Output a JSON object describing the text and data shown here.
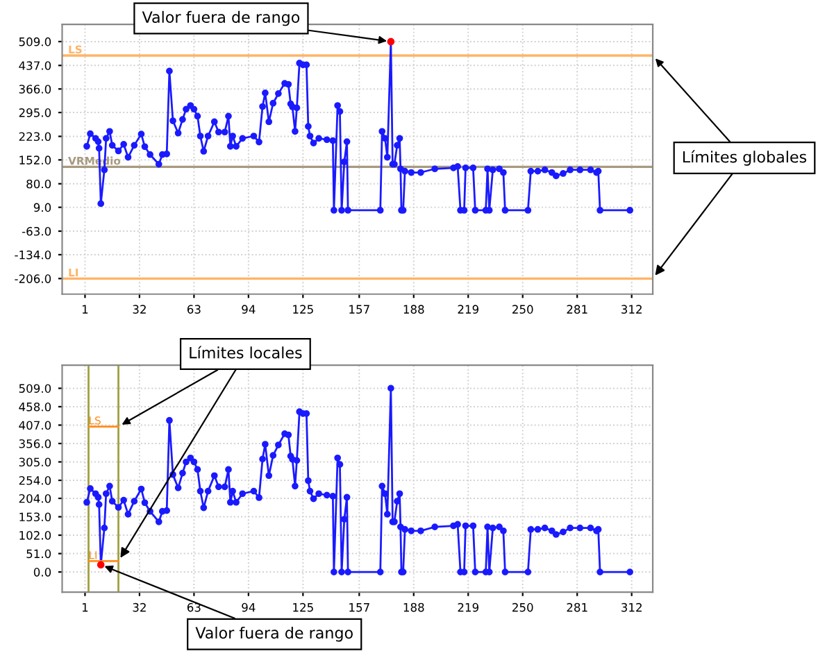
{
  "chart_data": [
    {
      "type": "line",
      "xlim": [
        -12,
        324
      ],
      "ylim": [
        -253,
        561
      ],
      "xticks": [
        1,
        32,
        63,
        94,
        125,
        157,
        188,
        219,
        250,
        281,
        312
      ],
      "yticks": [
        {
          "value": 509,
          "label": "509.0"
        },
        {
          "value": 437,
          "label": "437.0"
        },
        {
          "value": 366,
          "label": "366.0"
        },
        {
          "value": 295,
          "label": "295.0"
        },
        {
          "value": 223,
          "label": "223.0"
        },
        {
          "value": 152,
          "label": "152.0"
        },
        {
          "value": 80,
          "label": "80.0"
        },
        {
          "value": 9,
          "label": "9.0"
        },
        {
          "value": -63,
          "label": "-63.0"
        },
        {
          "value": -134,
          "label": "-134.0"
        },
        {
          "value": -206,
          "label": "-206.0"
        }
      ],
      "grid": true,
      "marker": "circle",
      "line_style": "solid",
      "series": [
        {
          "type": "line",
          "color": "#1a1aff",
          "x": [
            2,
            4,
            7,
            8.5,
            9,
            10,
            12,
            13,
            15,
            16.5,
            20,
            23,
            25.5,
            29,
            33,
            35,
            38,
            43,
            45,
            47.5,
            49,
            51,
            54,
            56.5,
            58.5,
            61,
            63,
            65,
            66.6,
            68.5,
            71,
            74.6,
            77,
            80.5,
            82.6,
            83.7,
            85,
            87,
            90.6,
            97,
            100,
            102,
            103.5,
            105.6,
            108,
            111,
            114.6,
            116.7,
            118,
            119,
            120.5,
            121.5,
            123,
            125,
            127,
            128,
            129,
            131,
            134,
            138.6,
            142,
            142.6,
            144.7,
            146,
            147,
            148.5,
            150,
            150.6,
            169,
            170,
            171.7,
            173,
            175,
            176,
            177,
            178.6,
            180,
            180.5,
            181,
            182,
            183,
            186.6,
            192,
            200,
            210.6,
            213,
            214.6,
            216.7,
            217.5,
            221.8,
            223,
            229,
            230,
            231,
            233,
            236.7,
            239,
            240,
            253,
            254.6,
            258.6,
            262.6,
            266.6,
            269,
            273,
            277,
            282.6,
            288.6,
            292,
            293,
            294,
            311
          ],
          "values": [
            193,
            231,
            217,
            207,
            187,
            20,
            122,
            217,
            238,
            196,
            179,
            199,
            160,
            196,
            230,
            192,
            168,
            139,
            168,
            170,
            420,
            270,
            233,
            274,
            305,
            316,
            305,
            284,
            224,
            178,
            224,
            267,
            236,
            236,
            284,
            193,
            224,
            193,
            217,
            224,
            206,
            313,
            354,
            267,
            323,
            352,
            383,
            380,
            321,
            312,
            238,
            309,
            444,
            439,
            439,
            253,
            224,
            203,
            217,
            213,
            210,
            0,
            316,
            298,
            0,
            146,
            207,
            0,
            0,
            238,
            217,
            160,
            509,
            139,
            139,
            196,
            217,
            125,
            0,
            0,
            118,
            114,
            114,
            125,
            128,
            132,
            0,
            0,
            128,
            128,
            0,
            0,
            125,
            0,
            122,
            125,
            114,
            0,
            0,
            118,
            118,
            122,
            114,
            104,
            111,
            122,
            122,
            122,
            114,
            118,
            0,
            0
          ]
        },
        {
          "type": "scatter",
          "color": "#ff0000",
          "x": [
            175
          ],
          "values": [
            509
          ]
        }
      ],
      "ref_lines": [
        {
          "axis": "y",
          "value": 467,
          "label": "LS",
          "color": "#ffb366"
        },
        {
          "axis": "y",
          "value": -206,
          "label": "LI",
          "color": "#ffb366"
        },
        {
          "axis": "y",
          "value": 131,
          "label": "VRMedio",
          "color": "#a89a80"
        }
      ],
      "annotations": [
        {
          "text": "Valor fuera de rango",
          "x": 175,
          "y": 509
        },
        {
          "text": "Límites globales",
          "x": 324,
          "y": 467
        }
      ]
    },
    {
      "type": "line",
      "xlim": [
        -12,
        324
      ],
      "ylim": [
        -56,
        573
      ],
      "xticks": [
        1,
        32,
        63,
        94,
        125,
        157,
        188,
        219,
        250,
        281,
        312
      ],
      "yticks": [
        {
          "value": 509,
          "label": "509.0"
        },
        {
          "value": 458,
          "label": "458.0"
        },
        {
          "value": 407,
          "label": "407.0"
        },
        {
          "value": 356,
          "label": "356.0"
        },
        {
          "value": 305,
          "label": "305.0"
        },
        {
          "value": 254,
          "label": "254.0"
        },
        {
          "value": 204,
          "label": "204.0"
        },
        {
          "value": 153,
          "label": "153.0"
        },
        {
          "value": 102,
          "label": "102.0"
        },
        {
          "value": 51,
          "label": "51.0"
        },
        {
          "value": 0,
          "label": "0.0"
        }
      ],
      "grid": true,
      "marker": "circle",
      "line_style": "solid",
      "series": [
        {
          "color": "#1a1aff",
          "x": [
            2,
            4,
            7,
            8.5,
            9,
            10,
            12,
            13,
            15,
            16.5,
            20,
            23,
            25.5,
            29,
            33,
            35,
            38,
            43,
            45,
            47.5,
            49,
            51,
            54,
            56.5,
            58.5,
            61,
            63,
            65,
            66.6,
            68.5,
            71,
            74.6,
            77,
            80.5,
            82.6,
            83.7,
            85,
            87,
            90.6,
            97,
            100,
            102,
            103.5,
            105.6,
            108,
            111,
            114.6,
            116.7,
            118,
            119,
            120.5,
            121.5,
            123,
            125,
            127,
            128,
            129,
            131,
            134,
            138.6,
            142,
            142.6,
            144.7,
            146,
            147,
            148.5,
            150,
            150.6,
            169,
            170,
            171.7,
            173,
            175,
            176,
            177,
            178.6,
            180,
            180.5,
            181,
            182,
            183,
            186.6,
            192,
            200,
            210.6,
            213,
            214.6,
            216.7,
            217.5,
            221.8,
            223,
            229,
            230,
            231,
            233,
            236.7,
            239,
            240,
            253,
            254.6,
            258.6,
            262.6,
            266.6,
            269,
            273,
            277,
            282.6,
            288.6,
            292,
            293,
            294,
            311
          ],
          "values": [
            193,
            231,
            217,
            207,
            187,
            20,
            122,
            217,
            238,
            196,
            179,
            199,
            160,
            196,
            230,
            192,
            168,
            139,
            168,
            170,
            420,
            270,
            233,
            274,
            305,
            316,
            305,
            284,
            224,
            178,
            224,
            267,
            236,
            236,
            284,
            193,
            224,
            193,
            217,
            224,
            206,
            313,
            354,
            267,
            323,
            352,
            383,
            380,
            321,
            312,
            238,
            309,
            444,
            439,
            439,
            253,
            224,
            203,
            217,
            213,
            210,
            0,
            316,
            298,
            0,
            146,
            207,
            0,
            0,
            238,
            217,
            160,
            509,
            139,
            139,
            196,
            217,
            125,
            0,
            0,
            118,
            114,
            114,
            125,
            128,
            132,
            0,
            0,
            128,
            128,
            0,
            0,
            125,
            0,
            122,
            125,
            114,
            0,
            0,
            118,
            118,
            122,
            114,
            104,
            111,
            122,
            122,
            122,
            114,
            118,
            0,
            0
          ]
        },
        {
          "name": "LS",
          "color": "#ff8c1a",
          "marker": "none",
          "x": [
            3,
            20
          ],
          "values": [
            403,
            403
          ]
        },
        {
          "name": "LI",
          "color": "#ff8c1a",
          "marker": "none",
          "x": [
            3,
            20
          ],
          "values": [
            30,
            30
          ]
        },
        {
          "type": "scatter",
          "color": "#ff0000",
          "x": [
            10
          ],
          "values": [
            20
          ]
        }
      ],
      "ref_lines": [
        {
          "axis": "x",
          "value": 3,
          "color": "#a0a040"
        },
        {
          "axis": "x",
          "value": 20,
          "color": "#a0a040"
        }
      ],
      "annotations": [
        {
          "text": "Valor fuera de rango",
          "x": 10,
          "y": 20
        },
        {
          "text": "Límites locales",
          "x": 20,
          "y": 403
        }
      ]
    }
  ]
}
